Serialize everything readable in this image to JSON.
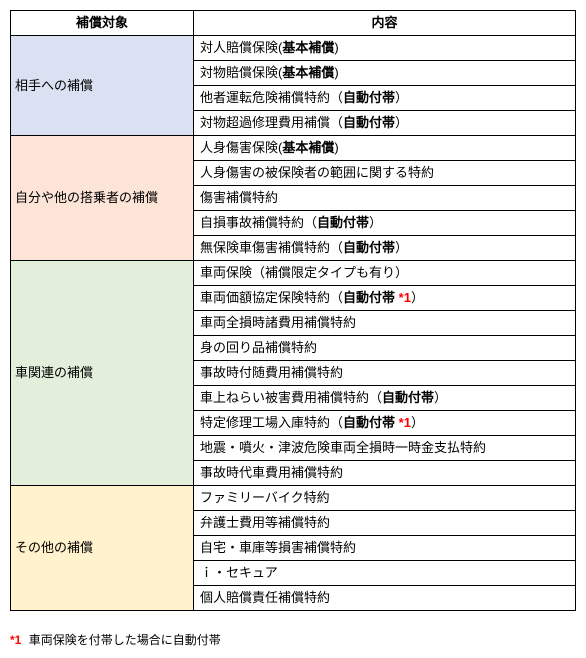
{
  "headers": {
    "col1": "補償対象",
    "col2": "内容"
  },
  "categories": [
    {
      "label": "相手への補償",
      "bg": "#d9e1f2",
      "rows": [
        {
          "segments": [
            {
              "t": "対人賠償保険("
            },
            {
              "t": "基本補償",
              "bold": true
            },
            {
              "t": ")"
            }
          ]
        },
        {
          "segments": [
            {
              "t": "対物賠償保険("
            },
            {
              "t": "基本補償",
              "bold": true
            },
            {
              "t": ")"
            }
          ]
        },
        {
          "segments": [
            {
              "t": "他者運転危険補償特約（"
            },
            {
              "t": "自動付帯",
              "bold": true
            },
            {
              "t": "）"
            }
          ]
        },
        {
          "segments": [
            {
              "t": "対物超過修理費用補償（"
            },
            {
              "t": "自動付帯",
              "bold": true
            },
            {
              "t": "）"
            }
          ]
        }
      ]
    },
    {
      "label": "自分や他の搭乗者の補償",
      "bg": "#fce4d6",
      "rows": [
        {
          "segments": [
            {
              "t": "人身傷害保険("
            },
            {
              "t": "基本補償",
              "bold": true
            },
            {
              "t": ")"
            }
          ]
        },
        {
          "segments": [
            {
              "t": "人身傷害の被保険者の範囲に関する特約"
            }
          ]
        },
        {
          "segments": [
            {
              "t": "傷害補償特約"
            }
          ]
        },
        {
          "segments": [
            {
              "t": "自損事故補償特約（"
            },
            {
              "t": "自動付帯",
              "bold": true
            },
            {
              "t": "）"
            }
          ]
        },
        {
          "segments": [
            {
              "t": "無保険車傷害補償特約（"
            },
            {
              "t": "自動付帯",
              "bold": true
            },
            {
              "t": "）"
            }
          ]
        }
      ]
    },
    {
      "label": "車関連の補償",
      "bg": "#e2efda",
      "rows": [
        {
          "segments": [
            {
              "t": "車両保険（補償限定タイプも有り）"
            }
          ]
        },
        {
          "segments": [
            {
              "t": "車両価額協定保険特約（"
            },
            {
              "t": "自動付帯",
              "bold": true
            },
            {
              "t": " "
            },
            {
              "t": "*1",
              "red": true
            },
            {
              "t": "）"
            }
          ]
        },
        {
          "segments": [
            {
              "t": "車両全損時諸費用補償特約"
            }
          ]
        },
        {
          "segments": [
            {
              "t": "身の回り品補償特約"
            }
          ]
        },
        {
          "segments": [
            {
              "t": "事故時付随費用補償特約"
            }
          ]
        },
        {
          "segments": [
            {
              "t": "車上ねらい被害費用補償特約（"
            },
            {
              "t": "自動付帯",
              "bold": true
            },
            {
              "t": "）"
            }
          ]
        },
        {
          "segments": [
            {
              "t": "特定修理工場入庫特約（"
            },
            {
              "t": "自動付帯",
              "bold": true
            },
            {
              "t": " "
            },
            {
              "t": "*1",
              "red": true
            },
            {
              "t": "）"
            }
          ]
        },
        {
          "segments": [
            {
              "t": "地震・噴火・津波危険車両全損時一時金支払特約"
            }
          ]
        },
        {
          "segments": [
            {
              "t": "事故時代車費用補償特約"
            }
          ]
        }
      ]
    },
    {
      "label": "その他の補償",
      "bg": "#fff2cc",
      "rows": [
        {
          "segments": [
            {
              "t": "ファミリーバイク特約"
            }
          ]
        },
        {
          "segments": [
            {
              "t": "弁護士費用等補償特約"
            }
          ]
        },
        {
          "segments": [
            {
              "t": "自宅・車庫等損害補償特約"
            }
          ]
        },
        {
          "segments": [
            {
              "t": "ｉ・セキュア"
            }
          ]
        },
        {
          "segments": [
            {
              "t": "個人賠償責任補償特約"
            }
          ]
        }
      ]
    }
  ],
  "footnote": {
    "marker": "*1",
    "text": "車両保険を付帯した場合に自動付帯"
  }
}
